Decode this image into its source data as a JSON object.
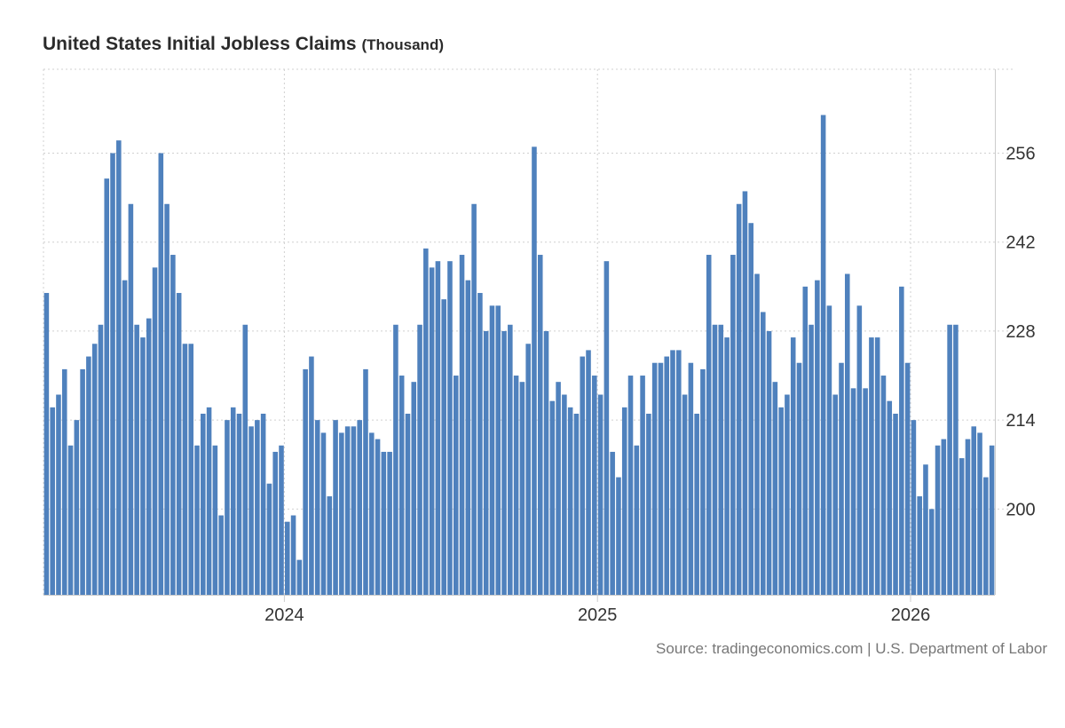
{
  "title": "United States Initial Jobless Claims",
  "unit": "(Thousand)",
  "source": "Source: tradingeconomics.com | U.S. Department of Labor",
  "colors": {
    "bar": "#4f81bd",
    "grid": "#d0d0d0",
    "axis": "#cccccc",
    "text": "#333333"
  },
  "chart_data": {
    "type": "bar",
    "title": "United States Initial Jobless Claims (Thousand)",
    "xlabel": "",
    "ylabel": "Thousand",
    "ylim": [
      186.5,
      269.2
    ],
    "yticks": [
      200,
      214,
      228,
      242,
      256
    ],
    "xticks": [
      {
        "label": "2024",
        "index": 40
      },
      {
        "label": "2025",
        "index": 92
      },
      {
        "label": "2026",
        "index": 144
      }
    ],
    "grid": true,
    "values": [
      234,
      216,
      218,
      222,
      210,
      214,
      222,
      224,
      226,
      229,
      252,
      256,
      258,
      236,
      248,
      229,
      227,
      230,
      238,
      256,
      248,
      240,
      234,
      226,
      226,
      210,
      215,
      216,
      210,
      199,
      214,
      216,
      215,
      229,
      213,
      214,
      215,
      204,
      209,
      210,
      198,
      199,
      192,
      222,
      224,
      214,
      212,
      202,
      214,
      212,
      213,
      213,
      214,
      222,
      212,
      211,
      209,
      209,
      229,
      221,
      215,
      220,
      229,
      241,
      238,
      239,
      233,
      239,
      221,
      240,
      236,
      248,
      234,
      228,
      232,
      232,
      228,
      229,
      221,
      220,
      226,
      257,
      240,
      228,
      217,
      220,
      218,
      216,
      215,
      224,
      225,
      221,
      218,
      239,
      209,
      205,
      216,
      221,
      210,
      221,
      215,
      223,
      223,
      224,
      225,
      225,
      218,
      223,
      215,
      222,
      240,
      229,
      229,
      227,
      240,
      248,
      250,
      245,
      237,
      231,
      228,
      220,
      216,
      218,
      227,
      223,
      235,
      229,
      236,
      262,
      232,
      218,
      223,
      237,
      219,
      232,
      219,
      227,
      227,
      221,
      217,
      215,
      235,
      223,
      214,
      202,
      207,
      200,
      210,
      211,
      229,
      229,
      208,
      211,
      213,
      212,
      205,
      210
    ]
  }
}
